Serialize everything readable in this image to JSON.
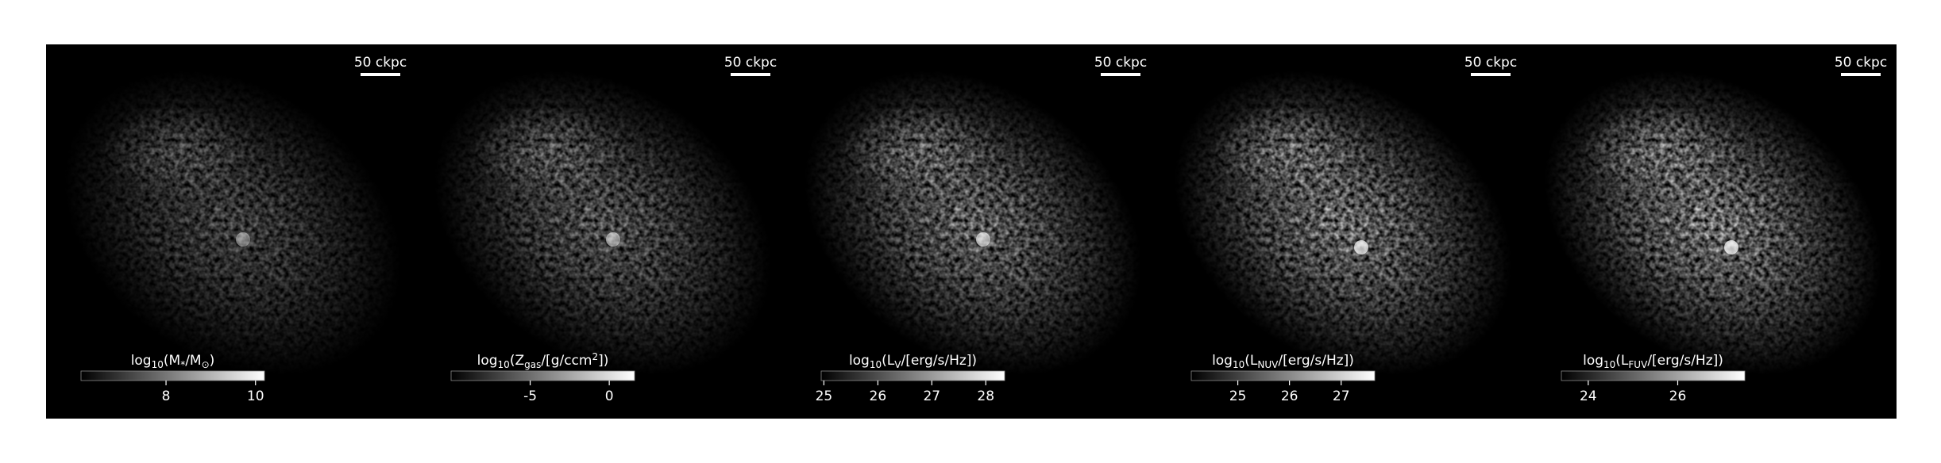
{
  "panels": [
    {
      "scalebar": "50 ckpc",
      "colorbar": {
        "label": [
          {
            "t": "log"
          },
          {
            "t": "10",
            "sub": true
          },
          {
            "t": "(M"
          },
          {
            "t": "*",
            "sub": true
          },
          {
            "t": "/M"
          },
          {
            "t": "⊙",
            "sub": true
          },
          {
            "t": ")"
          }
        ],
        "lim": [
          6.1,
          10.2
        ],
        "ticks": [
          8,
          10
        ]
      }
    },
    {
      "scalebar": "50 ckpc",
      "colorbar": {
        "label": [
          {
            "t": "log"
          },
          {
            "t": "10",
            "sub": true
          },
          {
            "t": "(Z"
          },
          {
            "t": "gas",
            "sub": true
          },
          {
            "t": "/[g/ccm"
          },
          {
            "t": "2",
            "sup": true
          },
          {
            "t": "])"
          }
        ],
        "lim": [
          -10,
          1.6
        ],
        "ticks": [
          -5,
          0
        ]
      }
    },
    {
      "scalebar": "50 ckpc",
      "colorbar": {
        "label": [
          {
            "t": "log"
          },
          {
            "t": "10",
            "sub": true
          },
          {
            "t": "(L"
          },
          {
            "t": "V",
            "sub": true
          },
          {
            "t": "/[erg/s/Hz])"
          }
        ],
        "lim": [
          24.95,
          28.35
        ],
        "ticks": [
          25,
          26,
          27,
          28
        ]
      }
    },
    {
      "scalebar": "50 ckpc",
      "colorbar": {
        "label": [
          {
            "t": "log"
          },
          {
            "t": "10",
            "sub": true
          },
          {
            "t": "(L"
          },
          {
            "t": "NUV",
            "sub": true
          },
          {
            "t": "/[erg/s/Hz])"
          }
        ],
        "lim": [
          24.1,
          27.65
        ],
        "ticks": [
          25,
          26,
          27
        ]
      }
    },
    {
      "scalebar": "50 ckpc",
      "colorbar": {
        "label": [
          {
            "t": "log"
          },
          {
            "t": "10",
            "sub": true
          },
          {
            "t": "(L"
          },
          {
            "t": "FUV",
            "sub": true
          },
          {
            "t": "/[erg/s/Hz])"
          }
        ],
        "lim": [
          23.4,
          27.5
        ],
        "ticks": [
          24,
          26
        ]
      }
    }
  ]
}
